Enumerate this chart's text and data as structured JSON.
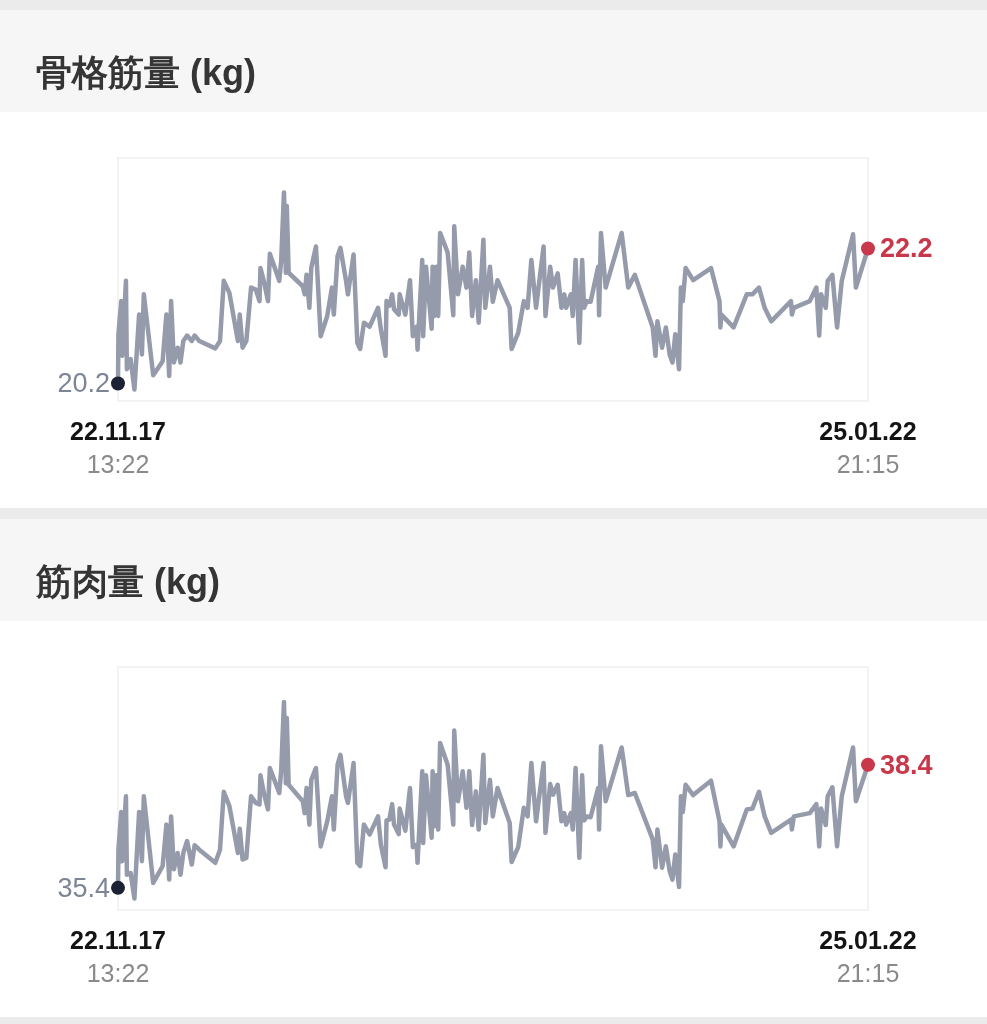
{
  "chart_data": [
    {
      "type": "line",
      "title": "骨格筋量 (kg)",
      "tick_labels": "x",
      "xlim": [
        "2022-11-17T13:22",
        "2025-01-22T21:15"
      ],
      "xticks": [
        {
          "value": "2022-11-17T13:22",
          "label": "22.11.17\n13:22"
        },
        {
          "value": "2025-01-22T21:15",
          "label": "25.01.22\n21:15"
        }
      ],
      "ylim": [
        19.94,
        23.54
      ],
      "series": [
        {
          "color": "#959bab",
          "x": [
            "2022-11-17T13:22",
            "2022-11-18",
            "2022-11-21",
            "2022-11-22",
            "2022-11-26",
            "2022-11-27",
            "2022-12-01",
            "2022-12-05",
            "2022-12-10",
            "2022-12-13",
            "2022-12-15",
            "2022-12-25",
            "2023-01-04",
            "2023-01-08",
            "2023-01-11",
            "2023-01-13",
            "2023-01-16",
            "2023-01-20",
            "2023-01-23",
            "2023-01-26",
            "2023-01-30",
            "2023-02-04",
            "2023-02-07",
            "2023-02-12",
            "2023-03-01",
            "2023-03-06",
            "2023-03-10",
            "2023-03-16",
            "2023-03-25",
            "2023-03-27",
            "2023-03-30",
            "2023-04-03",
            "2023-04-08",
            "2023-04-13",
            "2023-04-17",
            "2023-04-18",
            "2023-04-22",
            "2023-04-26",
            "2023-04-28",
            "2023-05-08",
            "2023-05-10",
            "2023-05-13",
            "2023-05-15",
            "2023-05-16",
            "2023-05-18",
            "2023-06-02",
            "2023-06-04",
            "2023-06-06",
            "2023-06-09",
            "2023-06-11",
            "2023-06-16",
            "2023-06-21",
            "2023-06-28",
            "2023-07-03",
            "2023-07-05",
            "2023-07-09",
            "2023-07-12",
            "2023-07-18",
            "2023-07-20",
            "2023-07-26",
            "2023-07-30",
            "2023-08-02",
            "2023-08-06",
            "2023-08-12",
            "2023-08-21",
            "2023-08-24",
            "2023-08-29",
            "2023-08-30",
            "2023-09-02",
            "2023-09-05",
            "2023-09-07",
            "2023-09-12",
            "2023-09-13",
            "2023-09-19",
            "2023-09-24",
            "2023-09-27",
            "2023-10-01",
            "2023-10-02",
            "2023-10-07",
            "2023-10-08",
            "2023-10-11",
            "2023-10-17",
            "2023-10-18",
            "2023-10-20",
            "2023-10-22",
            "2023-10-24",
            "2023-10-26",
            "2023-11-03",
            "2023-11-09",
            "2023-11-10",
            "2023-11-14",
            "2023-11-19",
            "2023-11-23",
            "2023-11-26",
            "2023-11-29",
            "2023-12-03",
            "2023-12-06",
            "2023-12-11",
            "2023-12-13",
            "2023-12-18",
            "2023-12-21",
            "2023-12-26",
            "2024-01-08",
            "2024-01-10",
            "2024-01-17",
            "2024-01-23",
            "2024-01-27",
            "2024-01-31",
            "2024-02-05",
            "2024-02-13",
            "2024-02-15",
            "2024-02-20",
            "2024-02-23",
            "2024-02-28",
            "2024-03-03",
            "2024-03-06",
            "2024-03-08",
            "2024-03-13",
            "2024-03-15",
            "2024-03-18",
            "2024-03-22",
            "2024-03-25",
            "2024-03-27",
            "2024-03-30",
            "2024-04-03",
            "2024-04-11",
            "2024-04-12",
            "2024-04-14",
            "2024-04-19",
            "2024-05-06",
            "2024-05-13",
            "2024-05-20",
            "2024-06-08",
            "2024-06-11",
            "2024-06-13",
            "2024-06-18",
            "2024-06-22",
            "2024-06-26",
            "2024-06-29",
            "2024-07-02",
            "2024-07-06",
            "2024-07-08",
            "2024-07-10",
            "2024-07-13",
            "2024-07-21",
            "2024-08-09",
            "2024-08-18",
            "2024-08-19",
            "2024-08-20",
            "2024-09-02",
            "2024-09-16",
            "2024-09-22",
            "2024-09-29",
            "2024-10-05",
            "2024-10-12",
            "2024-11-02",
            "2024-11-03",
            "2024-11-05",
            "2024-11-22",
            "2024-11-29",
            "2024-12-02",
            "2024-12-04",
            "2024-12-09",
            "2024-12-11",
            "2024-12-16",
            "2024-12-21",
            "2024-12-26",
            "2025-01-07",
            "2025-01-10",
            "2025-01-22T21:15"
          ],
          "values": [
            20.2,
            20.93,
            21.42,
            20.61,
            21.72,
            20.41,
            20.56,
            20.11,
            21.22,
            20.63,
            21.52,
            20.32,
            20.53,
            21.22,
            20.31,
            21.42,
            20.51,
            20.73,
            20.51,
            20.83,
            20.91,
            20.83,
            20.91,
            20.83,
            20.72,
            20.83,
            21.72,
            21.54,
            20.83,
            21.22,
            20.73,
            20.83,
            21.62,
            21.59,
            21.42,
            21.91,
            21.69,
            21.42,
            22.12,
            21.72,
            22.01,
            23.03,
            21.84,
            22.83,
            21.84,
            21.64,
            21.52,
            21.81,
            21.32,
            21.91,
            22.23,
            20.9,
            21.2,
            21.62,
            21.22,
            22.09,
            22.21,
            21.72,
            21.52,
            22.11,
            20.8,
            20.71,
            21.1,
            21.04,
            21.32,
            21.0,
            20.61,
            21.42,
            21.35,
            21.52,
            21.3,
            21.22,
            21.52,
            21.22,
            21.73,
            20.9,
            21.04,
            20.7,
            22.03,
            20.9,
            21.93,
            21.01,
            21.93,
            21.2,
            21.93,
            21.2,
            22.43,
            22.14,
            21.21,
            22.53,
            21.52,
            21.93,
            21.62,
            22.14,
            21.2,
            21.73,
            21.1,
            22.33,
            21.32,
            21.93,
            21.41,
            21.73,
            21.32,
            20.71,
            20.95,
            21.42,
            21.32,
            22.03,
            21.32,
            22.23,
            21.2,
            21.93,
            21.62,
            21.83,
            21.32,
            21.52,
            21.32,
            21.52,
            21.2,
            22.03,
            20.8,
            22.03,
            21.32,
            21.42,
            21.41,
            21.93,
            21.21,
            22.43,
            21.62,
            22.43,
            21.62,
            21.81,
            21.03,
            20.61,
            21.12,
            20.73,
            21.03,
            20.63,
            20.51,
            20.93,
            20.41,
            21.62,
            21.42,
            21.91,
            21.73,
            21.91,
            21.42,
            21.03,
            21.22,
            21.03,
            21.52,
            21.52,
            21.62,
            21.32,
            21.12,
            21.42,
            21.22,
            21.32,
            21.42,
            21.62,
            20.91,
            21.52,
            21.32,
            21.72,
            21.81,
            21.03,
            21.72,
            22.41,
            21.62,
            22.2
          ]
        },
        {
          "type": "scatter",
          "x": [
            "2022-11-17T13:22",
            "2025-01-22T21:15"
          ],
          "values": [
            20.2,
            22.2
          ],
          "colors": [
            "#1c2133",
            "#c9374a"
          ],
          "value_labels": [
            "20.2",
            "22.2"
          ]
        }
      ]
    },
    {
      "type": "line",
      "title": "筋肉量 (kg)",
      "tick_labels": "x",
      "xlim": [
        "2022-11-17T13:22",
        "2025-01-22T21:15"
      ],
      "xticks": [
        {
          "value": "2022-11-17T13:22",
          "label": "22.11.17\n13:22"
        },
        {
          "value": "2025-01-22T21:15",
          "label": "25.01.22\n21:15"
        }
      ],
      "ylim": [
        34.86,
        40.78
      ],
      "series": [
        {
          "color": "#959bab",
          "x": [
            "2022-11-17T13:22",
            "2022-11-18",
            "2022-11-21",
            "2022-11-22",
            "2022-11-26",
            "2022-11-27",
            "2022-12-01",
            "2022-12-05",
            "2022-12-10",
            "2022-12-13",
            "2022-12-15",
            "2022-12-25",
            "2023-01-04",
            "2023-01-08",
            "2023-01-11",
            "2023-01-13",
            "2023-01-16",
            "2023-01-20",
            "2023-01-23",
            "2023-01-26",
            "2023-01-30",
            "2023-02-04",
            "2023-02-07",
            "2023-02-12",
            "2023-03-01",
            "2023-03-06",
            "2023-03-10",
            "2023-03-16",
            "2023-03-25",
            "2023-03-27",
            "2023-03-30",
            "2023-04-03",
            "2023-04-08",
            "2023-04-13",
            "2023-04-17",
            "2023-04-18",
            "2023-04-22",
            "2023-04-26",
            "2023-04-28",
            "2023-05-08",
            "2023-05-10",
            "2023-05-13",
            "2023-05-15",
            "2023-05-16",
            "2023-05-18",
            "2023-06-02",
            "2023-06-04",
            "2023-06-06",
            "2023-06-09",
            "2023-06-11",
            "2023-06-16",
            "2023-06-21",
            "2023-06-28",
            "2023-07-03",
            "2023-07-05",
            "2023-07-09",
            "2023-07-12",
            "2023-07-18",
            "2023-07-20",
            "2023-07-26",
            "2023-07-30",
            "2023-08-02",
            "2023-08-06",
            "2023-08-12",
            "2023-08-21",
            "2023-08-24",
            "2023-08-29",
            "2023-08-30",
            "2023-09-02",
            "2023-09-05",
            "2023-09-07",
            "2023-09-12",
            "2023-09-13",
            "2023-09-19",
            "2023-09-24",
            "2023-09-27",
            "2023-10-01",
            "2023-10-02",
            "2023-10-07",
            "2023-10-08",
            "2023-10-11",
            "2023-10-17",
            "2023-10-18",
            "2023-10-20",
            "2023-10-22",
            "2023-10-24",
            "2023-10-26",
            "2023-11-03",
            "2023-11-09",
            "2023-11-10",
            "2023-11-14",
            "2023-11-19",
            "2023-11-23",
            "2023-11-26",
            "2023-11-29",
            "2023-12-03",
            "2023-12-06",
            "2023-12-11",
            "2023-12-13",
            "2023-12-18",
            "2023-12-21",
            "2023-12-26",
            "2024-01-08",
            "2024-01-10",
            "2024-01-17",
            "2024-01-23",
            "2024-01-27",
            "2024-01-31",
            "2024-02-05",
            "2024-02-13",
            "2024-02-15",
            "2024-02-20",
            "2024-02-23",
            "2024-02-28",
            "2024-03-03",
            "2024-03-06",
            "2024-03-08",
            "2024-03-13",
            "2024-03-15",
            "2024-03-18",
            "2024-03-22",
            "2024-03-25",
            "2024-03-27",
            "2024-03-30",
            "2024-04-03",
            "2024-04-11",
            "2024-04-12",
            "2024-04-14",
            "2024-04-19",
            "2024-05-06",
            "2024-05-13",
            "2024-05-20",
            "2024-06-08",
            "2024-06-11",
            "2024-06-13",
            "2024-06-18",
            "2024-06-22",
            "2024-06-26",
            "2024-06-29",
            "2024-07-02",
            "2024-07-06",
            "2024-07-08",
            "2024-07-10",
            "2024-07-13",
            "2024-07-21",
            "2024-08-09",
            "2024-08-18",
            "2024-08-19",
            "2024-08-20",
            "2024-09-02",
            "2024-09-16",
            "2024-09-22",
            "2024-09-29",
            "2024-10-05",
            "2024-10-12",
            "2024-11-02",
            "2024-11-03",
            "2024-11-05",
            "2024-11-22",
            "2024-11-29",
            "2024-12-02",
            "2024-12-04",
            "2024-12-09",
            "2024-12-11",
            "2024-12-16",
            "2024-12-21",
            "2024-12-26",
            "2025-01-07",
            "2025-01-10",
            "2025-01-22T21:15"
          ],
          "values": [
            35.4,
            36.33,
            37.25,
            36.05,
            37.63,
            35.72,
            35.76,
            35.14,
            37.25,
            36.05,
            37.63,
            35.52,
            35.93,
            36.94,
            35.6,
            37.14,
            35.85,
            36.25,
            35.72,
            36.25,
            36.54,
            35.97,
            36.44,
            36.33,
            36.01,
            36.33,
            37.74,
            37.39,
            36.25,
            36.84,
            36.09,
            36.13,
            37.63,
            37.47,
            37.43,
            38.14,
            37.67,
            37.31,
            38.32,
            37.71,
            38.24,
            39.93,
            37.95,
            39.54,
            37.91,
            37.51,
            37.22,
            37.83,
            36.94,
            38.03,
            38.32,
            36.41,
            37.02,
            37.63,
            36.82,
            38.4,
            38.64,
            37.63,
            37.47,
            38.44,
            36.01,
            35.93,
            36.94,
            36.7,
            37.14,
            36.45,
            35.9,
            37.04,
            37.06,
            37.44,
            36.94,
            36.71,
            37.33,
            36.79,
            37.83,
            36.39,
            36.45,
            36.01,
            38.24,
            36.49,
            38.14,
            36.62,
            38.24,
            36.9,
            38.14,
            36.82,
            38.93,
            38.4,
            36.94,
            39.23,
            37.51,
            38.24,
            37.35,
            38.24,
            36.93,
            37.75,
            36.82,
            38.64,
            36.98,
            38.03,
            37.14,
            37.83,
            36.98,
            36.03,
            36.39,
            37.35,
            37.14,
            38.44,
            37.02,
            38.44,
            36.74,
            37.93,
            37.67,
            37.91,
            37.02,
            37.22,
            36.94,
            37.22,
            36.82,
            38.32,
            36.13,
            38.14,
            37.04,
            37.14,
            37.12,
            37.83,
            36.82,
            38.85,
            37.51,
            38.82,
            37.66,
            37.71,
            36.58,
            35.9,
            36.82,
            35.89,
            36.41,
            35.81,
            35.6,
            36.21,
            35.42,
            37.63,
            37.25,
            37.91,
            37.66,
            38.01,
            37.02,
            36.41,
            36.94,
            36.41,
            37.31,
            37.33,
            37.74,
            37.14,
            36.74,
            37.06,
            36.82,
            37.14,
            37.22,
            37.44,
            36.41,
            37.33,
            36.93,
            37.63,
            37.85,
            36.41,
            37.63,
            38.82,
            37.51,
            38.4
          ]
        },
        {
          "type": "scatter",
          "x": [
            "2022-11-17T13:22",
            "2025-01-22T21:15"
          ],
          "values": [
            35.4,
            38.4
          ],
          "colors": [
            "#1c2133",
            "#c9374a"
          ],
          "value_labels": [
            "35.4",
            "38.4"
          ]
        }
      ]
    }
  ]
}
